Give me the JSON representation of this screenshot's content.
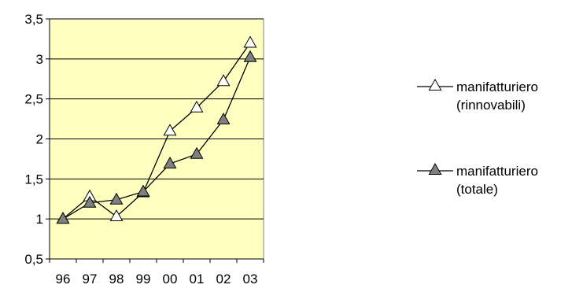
{
  "chart_data": {
    "type": "line",
    "categories": [
      "96",
      "97",
      "98",
      "99",
      "00",
      "01",
      "02",
      "03"
    ],
    "ylim": [
      0.5,
      3.5
    ],
    "yticks": [
      "0,5",
      "1",
      "1,5",
      "2",
      "2,5",
      "3",
      "3,5"
    ],
    "grid": true,
    "legend_position": "right",
    "colors": {
      "plot_bg": "#FFFFC0",
      "grid": "#000000",
      "line": "#000000",
      "open_marker": "#FFFFFF",
      "filled_marker": "#808080"
    },
    "series": [
      {
        "name": "manifatturiero (rinnovabili)",
        "legend_lines": [
          "manifatturiero",
          "(rinnovabili)"
        ],
        "marker": "open-triangle",
        "values": [
          1.0,
          1.28,
          1.03,
          1.33,
          2.1,
          2.39,
          2.72,
          3.2
        ]
      },
      {
        "name": "manifatturiero (totale)",
        "legend_lines": [
          "manifatturiero",
          "(totale)"
        ],
        "marker": "filled-triangle",
        "values": [
          1.0,
          1.2,
          1.24,
          1.34,
          1.69,
          1.81,
          2.24,
          3.02
        ]
      }
    ]
  }
}
